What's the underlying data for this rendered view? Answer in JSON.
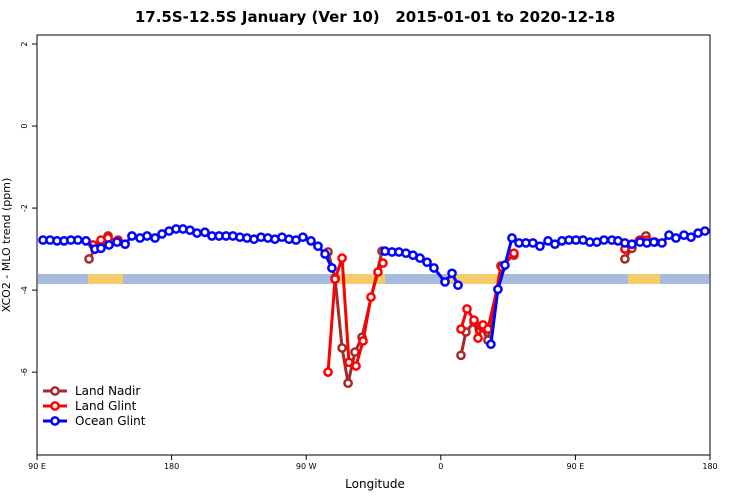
{
  "chart_data": {
    "type": "line",
    "title": "17.5S-12.5S January (Ver 10)   2015-01-01 to 2020-12-18",
    "x_label": "Longitude",
    "y_label": "XCO2 - MLO trend (ppm)",
    "xlim": [
      90,
      540
    ],
    "xticks": [
      {
        "value": 90,
        "label": "90 E"
      },
      {
        "value": 180,
        "label": "180"
      },
      {
        "value": 270,
        "label": "90 W"
      },
      {
        "value": 360,
        "label": "0"
      },
      {
        "value": 450,
        "label": "90 E"
      },
      {
        "value": 540,
        "label": "180"
      }
    ],
    "ylim": [
      -8.02,
      2.22
    ],
    "yticks": [
      -6,
      -4,
      -2,
      0,
      2
    ],
    "legend": "bottomleft",
    "series": [
      {
        "name": "Land Nadir",
        "color": "#a52a2a",
        "x": [
          124.8,
          128.8,
          132.8,
          137.5,
          null,
          284.6,
          289.3,
          294.0,
          298.0,
          302.6,
          307.3,
          320.7,
          null,
          373.5,
          376.8,
          382.2,
          386.9,
          391.5,
          400.2,
          408.9,
          null,
          483.1,
          487.8,
          492.5,
          497.2
        ],
        "values": [
          -3.24,
          -3.0,
          -2.85,
          -2.68,
          null,
          -3.07,
          -3.71,
          -5.41,
          -6.27,
          -5.51,
          -5.15,
          -3.05,
          null,
          -5.59,
          -5.02,
          -4.78,
          -4.88,
          -5.22,
          -3.41,
          -3.15,
          null,
          -3.24,
          -2.98,
          -2.8,
          -2.68
        ]
      },
      {
        "name": "Land Glint",
        "color": "#ff0000",
        "x": [
          127.5,
          132.8,
          137.5,
          144.2,
          null,
          284.6,
          289.3,
          294.0,
          298.6,
          303.3,
          308.0,
          313.3,
          318.0,
          321.3,
          null,
          373.5,
          377.5,
          382.2,
          384.9,
          388.2,
          391.5,
          400.9,
          408.9,
          null,
          483.1,
          487.8,
          493.2,
          497.8,
          503.2
        ],
        "values": [
          -2.9,
          -2.78,
          -2.73,
          -2.78,
          null,
          -6.0,
          -3.73,
          -3.22,
          -5.76,
          -5.85,
          -5.24,
          -4.17,
          -3.56,
          -3.34,
          null,
          -4.95,
          -4.46,
          -4.73,
          -5.17,
          -4.85,
          -4.95,
          -3.44,
          -3.1,
          null,
          -3.0,
          -2.88,
          -2.78,
          -2.78,
          -2.83
        ]
      },
      {
        "name": "Ocean Glint",
        "color": "#0000ff",
        "x": [
          94.0,
          98.7,
          103.4,
          108.1,
          112.7,
          117.4,
          122.8,
          128.8,
          132.8,
          138.2,
          143.5,
          148.9,
          153.5,
          158.9,
          163.6,
          168.9,
          173.6,
          178.3,
          183.0,
          187.6,
          192.3,
          197.0,
          202.3,
          207.0,
          211.7,
          216.4,
          221.0,
          225.7,
          230.4,
          235.1,
          239.8,
          244.4,
          249.1,
          253.8,
          258.5,
          263.2,
          267.8,
          273.2,
          277.9,
          282.6,
          287.2,
          null,
          322.7,
          327.4,
          332.0,
          336.7,
          341.4,
          346.1,
          350.8,
          355.4,
          362.8,
          367.5,
          371.5,
          null,
          393.5,
          398.2,
          402.9,
          407.6,
          412.3,
          416.9,
          421.6,
          426.3,
          431.7,
          436.3,
          441.0,
          445.7,
          450.4,
          455.1,
          459.7,
          464.4,
          469.1,
          474.4,
          478.5,
          483.1,
          487.8,
          493.2,
          497.8,
          502.5,
          507.9,
          512.6,
          517.2,
          522.6,
          527.3,
          532.0,
          536.6
        ],
        "values": [
          -2.78,
          -2.78,
          -2.8,
          -2.8,
          -2.78,
          -2.78,
          -2.8,
          -3.0,
          -2.98,
          -2.9,
          -2.83,
          -2.88,
          -2.68,
          -2.73,
          -2.68,
          -2.73,
          -2.63,
          -2.56,
          -2.51,
          -2.51,
          -2.54,
          -2.61,
          -2.59,
          -2.68,
          -2.68,
          -2.68,
          -2.68,
          -2.71,
          -2.73,
          -2.76,
          -2.71,
          -2.73,
          -2.76,
          -2.71,
          -2.76,
          -2.78,
          -2.71,
          -2.8,
          -2.93,
          -3.12,
          -3.46,
          null,
          -3.05,
          -3.07,
          -3.07,
          -3.1,
          -3.15,
          -3.22,
          -3.32,
          -3.46,
          -3.8,
          -3.59,
          -3.88,
          null,
          -5.32,
          -3.98,
          -3.39,
          -2.73,
          -2.85,
          -2.85,
          -2.85,
          -2.93,
          -2.8,
          -2.88,
          -2.8,
          -2.78,
          -2.78,
          -2.78,
          -2.83,
          -2.83,
          -2.78,
          -2.78,
          -2.8,
          -2.85,
          -2.88,
          -2.83,
          -2.85,
          -2.83,
          -2.85,
          -2.66,
          -2.73,
          -2.66,
          -2.71,
          -2.61,
          -2.56
        ]
      }
    ]
  }
}
